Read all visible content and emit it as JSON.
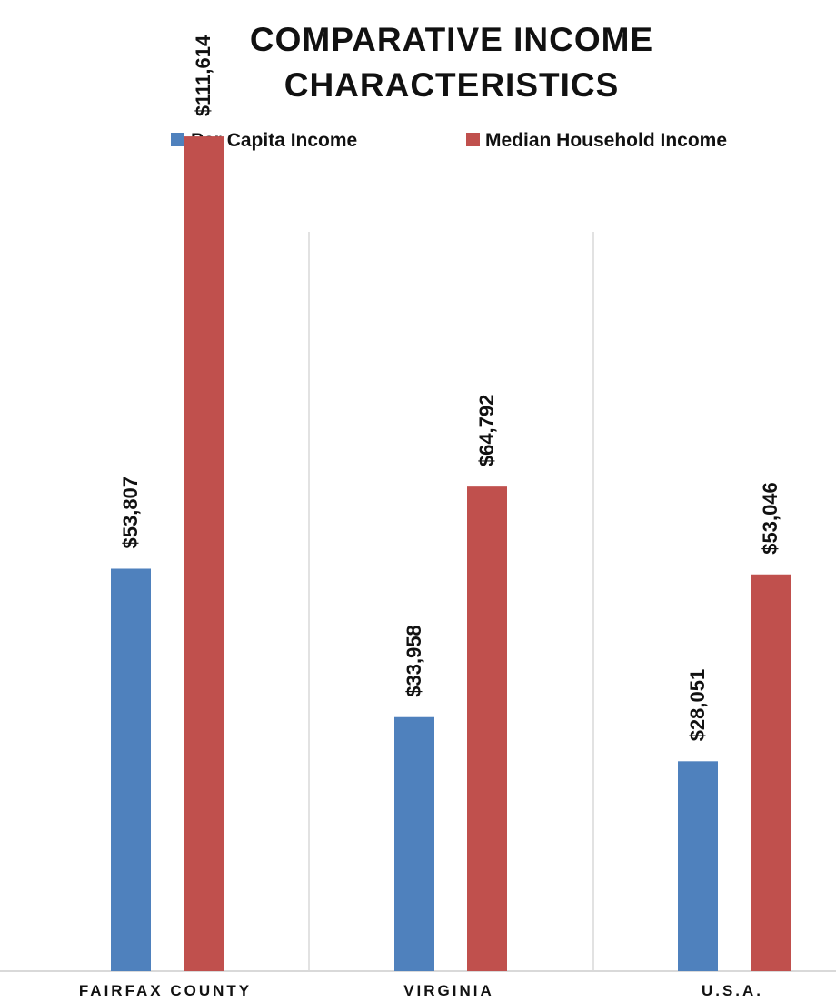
{
  "chart_data": {
    "type": "bar",
    "title_lines": [
      "COMPARATIVE INCOME",
      "CHARACTERISTICS"
    ],
    "xlabel": "",
    "ylabel": "",
    "categories": [
      "FAIRFAX COUNTY",
      "VIRGINIA",
      "U.S.A."
    ],
    "series": [
      {
        "name": "Per Capita Income",
        "color": "#4f81bd",
        "values": [
          53807,
          33958,
          28051
        ],
        "labels": [
          "$53,807",
          "$33,958",
          "$28,051"
        ]
      },
      {
        "name": "Median Household Income",
        "color": "#c0504d",
        "values": [
          111614,
          64792,
          53046
        ],
        "labels": [
          "$111,614",
          "$64,792",
          "$53,046"
        ]
      }
    ],
    "ylim": [
      0,
      125000
    ],
    "grid": false,
    "category_separators": true,
    "legend_position": "top"
  }
}
